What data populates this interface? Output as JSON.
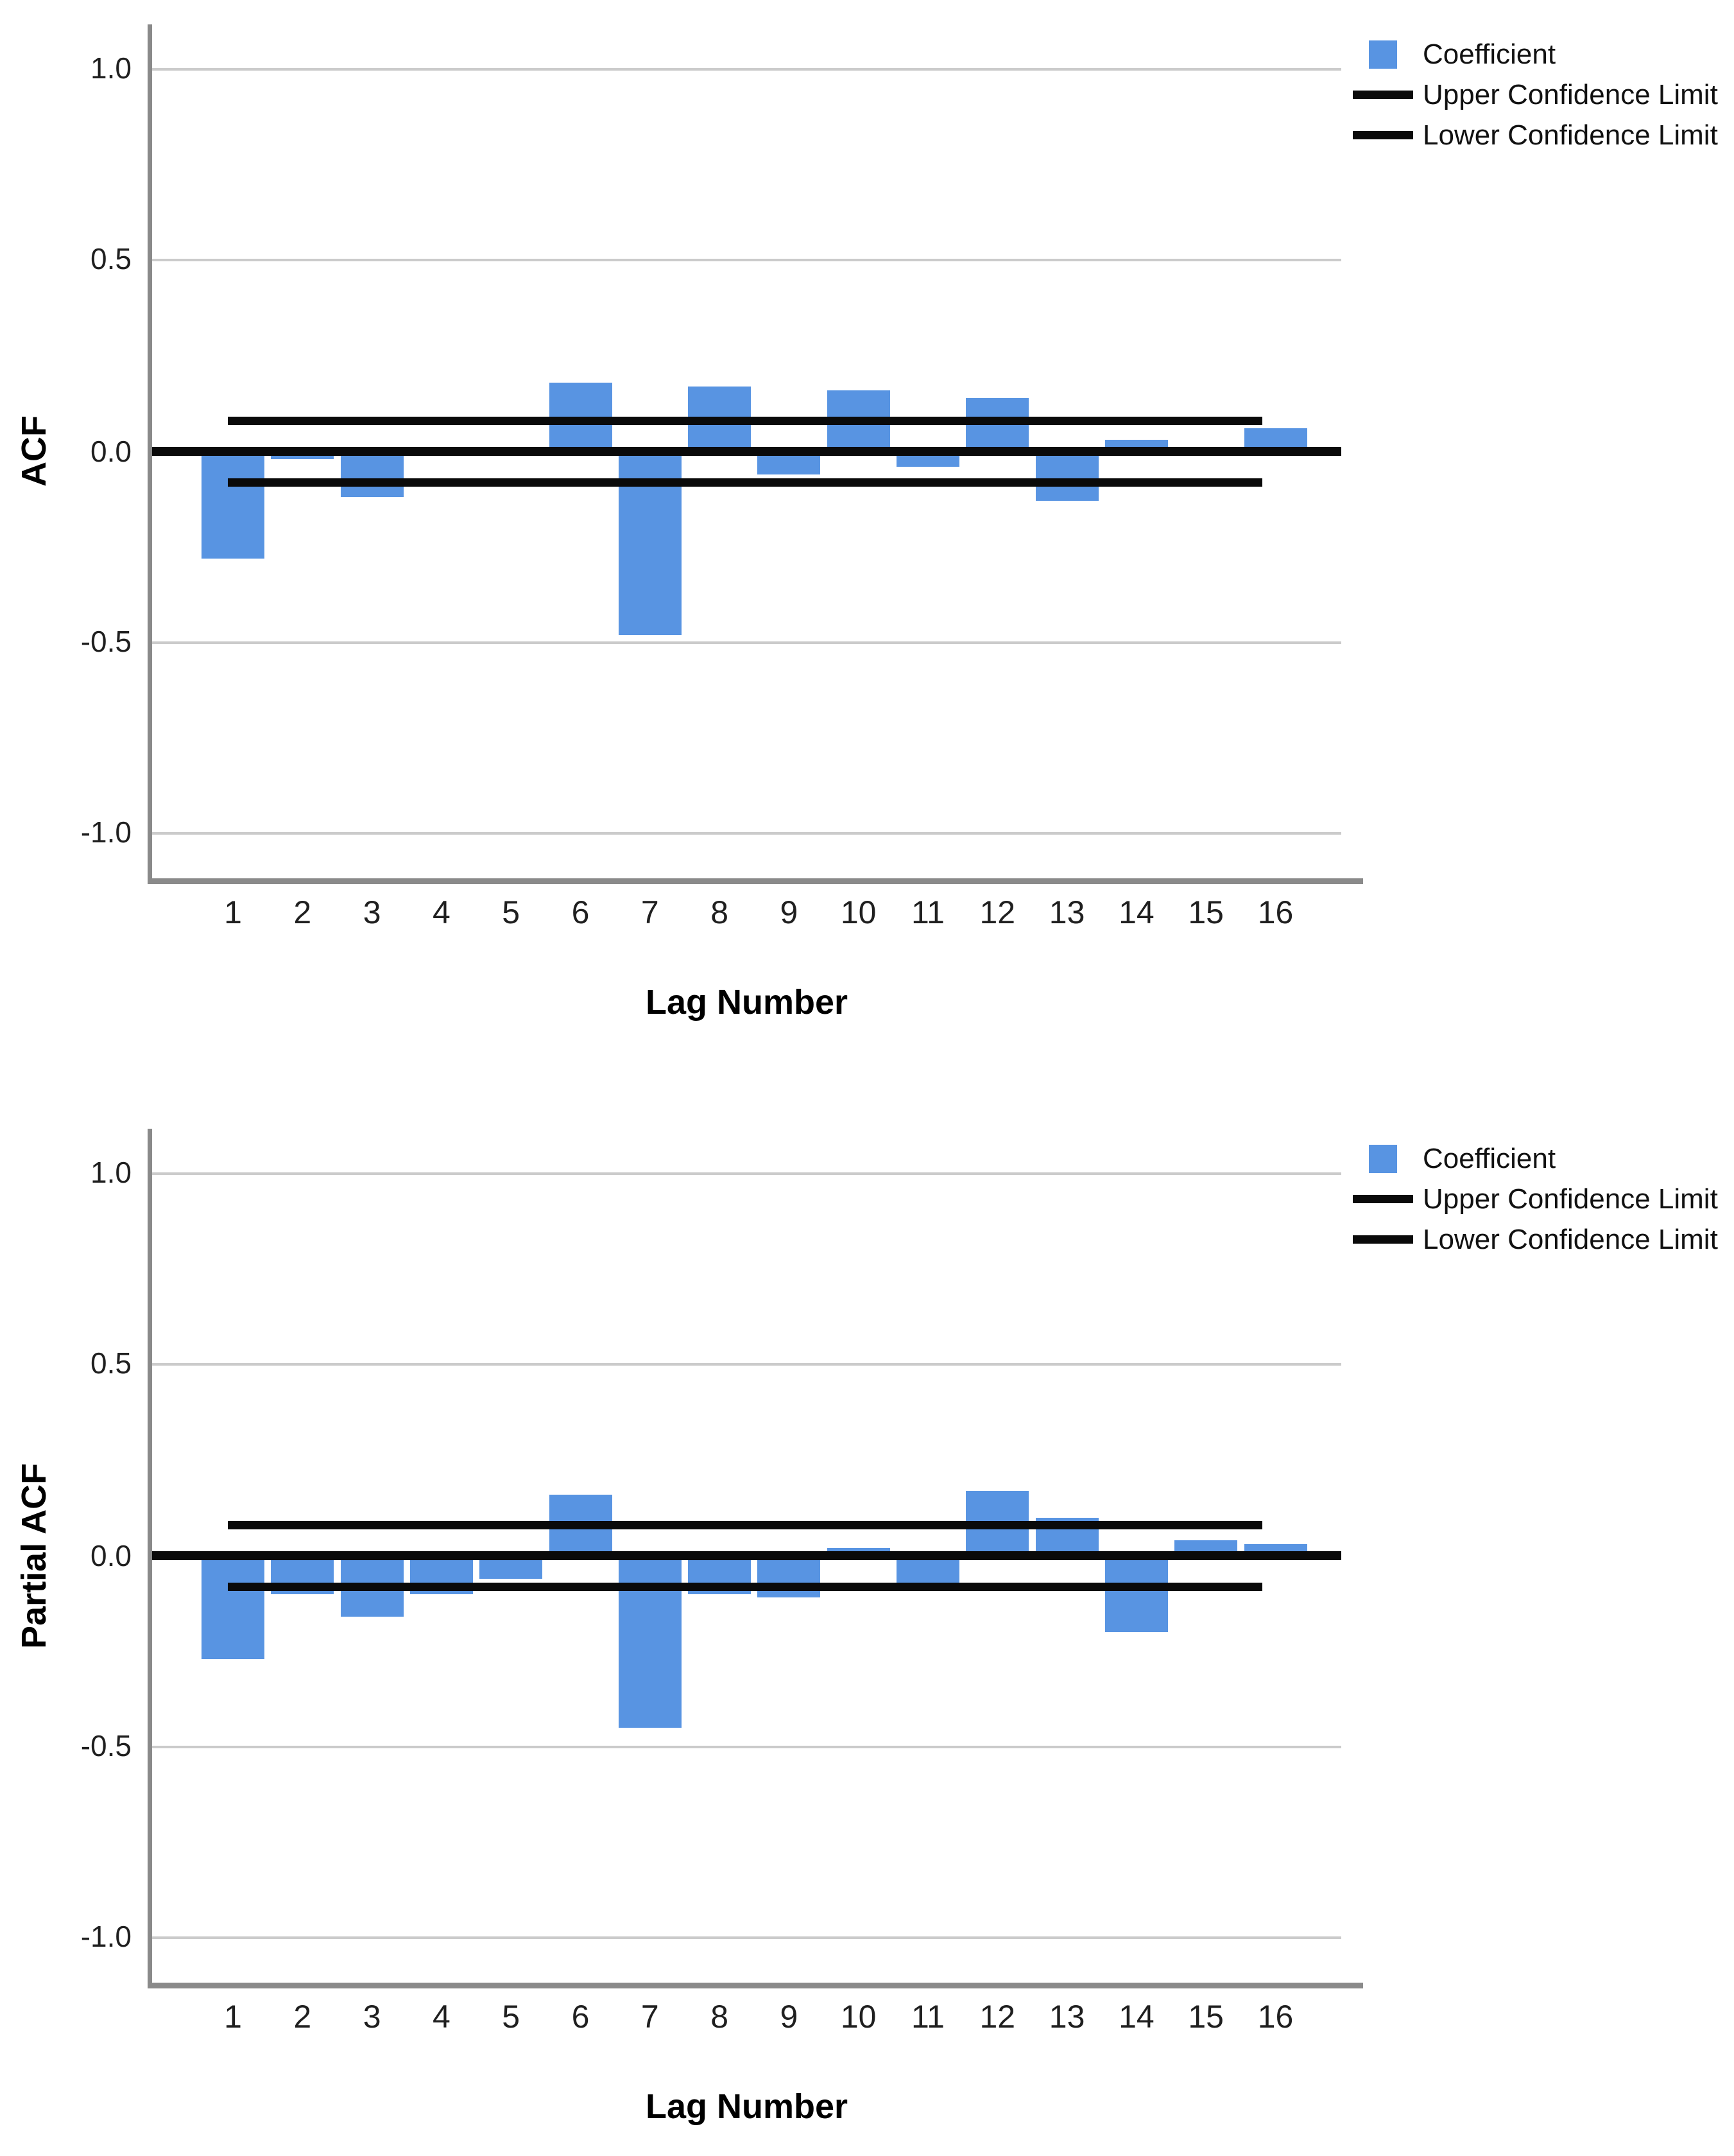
{
  "colors": {
    "bar": "#5894e2",
    "confidence_line": "#0a0a0a",
    "zero_line": "#0a0a0a",
    "gridline": "#cbcbcb",
    "axis_line": "#8a8a8a"
  },
  "legend": {
    "coefficient": "Coefficient",
    "upper": "Upper Confidence Limit",
    "lower": "Lower Confidence Limit"
  },
  "chart_data": [
    {
      "type": "bar",
      "title": "",
      "ylabel": "ACF",
      "xlabel": "Lag Number",
      "categories": [
        1,
        2,
        3,
        4,
        5,
        6,
        7,
        8,
        9,
        10,
        11,
        12,
        13,
        14,
        15,
        16
      ],
      "values": [
        -0.28,
        -0.02,
        -0.12,
        0.0,
        0.0,
        0.18,
        -0.48,
        0.17,
        -0.06,
        0.16,
        -0.04,
        0.14,
        -0.13,
        0.03,
        -0.01,
        0.06
      ],
      "upper_confidence_limit": 0.08,
      "lower_confidence_limit": -0.08,
      "ylim": [
        -1.1,
        1.1
      ],
      "ytick_values": [
        1.0,
        0.5,
        0.0,
        -0.5,
        -1.0
      ],
      "ytick_labels": [
        "1.0",
        "0.5",
        "0.0",
        "-0.5",
        "-1.0"
      ],
      "grid": "horizontal",
      "legend_position": "top-right",
      "legend_entries": [
        "Coefficient",
        "Upper Confidence Limit",
        "Lower Confidence Limit"
      ]
    },
    {
      "type": "bar",
      "title": "",
      "ylabel": "Partial ACF",
      "xlabel": "Lag Number",
      "categories": [
        1,
        2,
        3,
        4,
        5,
        6,
        7,
        8,
        9,
        10,
        11,
        12,
        13,
        14,
        15,
        16
      ],
      "values": [
        -0.27,
        -0.1,
        -0.16,
        -0.1,
        -0.06,
        0.16,
        -0.45,
        -0.1,
        -0.11,
        0.02,
        -0.07,
        0.17,
        0.1,
        -0.2,
        0.04,
        0.03
      ],
      "upper_confidence_limit": 0.08,
      "lower_confidence_limit": -0.08,
      "ylim": [
        -1.1,
        1.1
      ],
      "ytick_values": [
        1.0,
        0.5,
        0.0,
        -0.5,
        -1.0
      ],
      "ytick_labels": [
        "1.0",
        "0.5",
        "0.0",
        "-0.5",
        "-1.0"
      ],
      "grid": "horizontal",
      "legend_position": "top-right",
      "legend_entries": [
        "Coefficient",
        "Upper Confidence Limit",
        "Lower Confidence Limit"
      ]
    }
  ]
}
